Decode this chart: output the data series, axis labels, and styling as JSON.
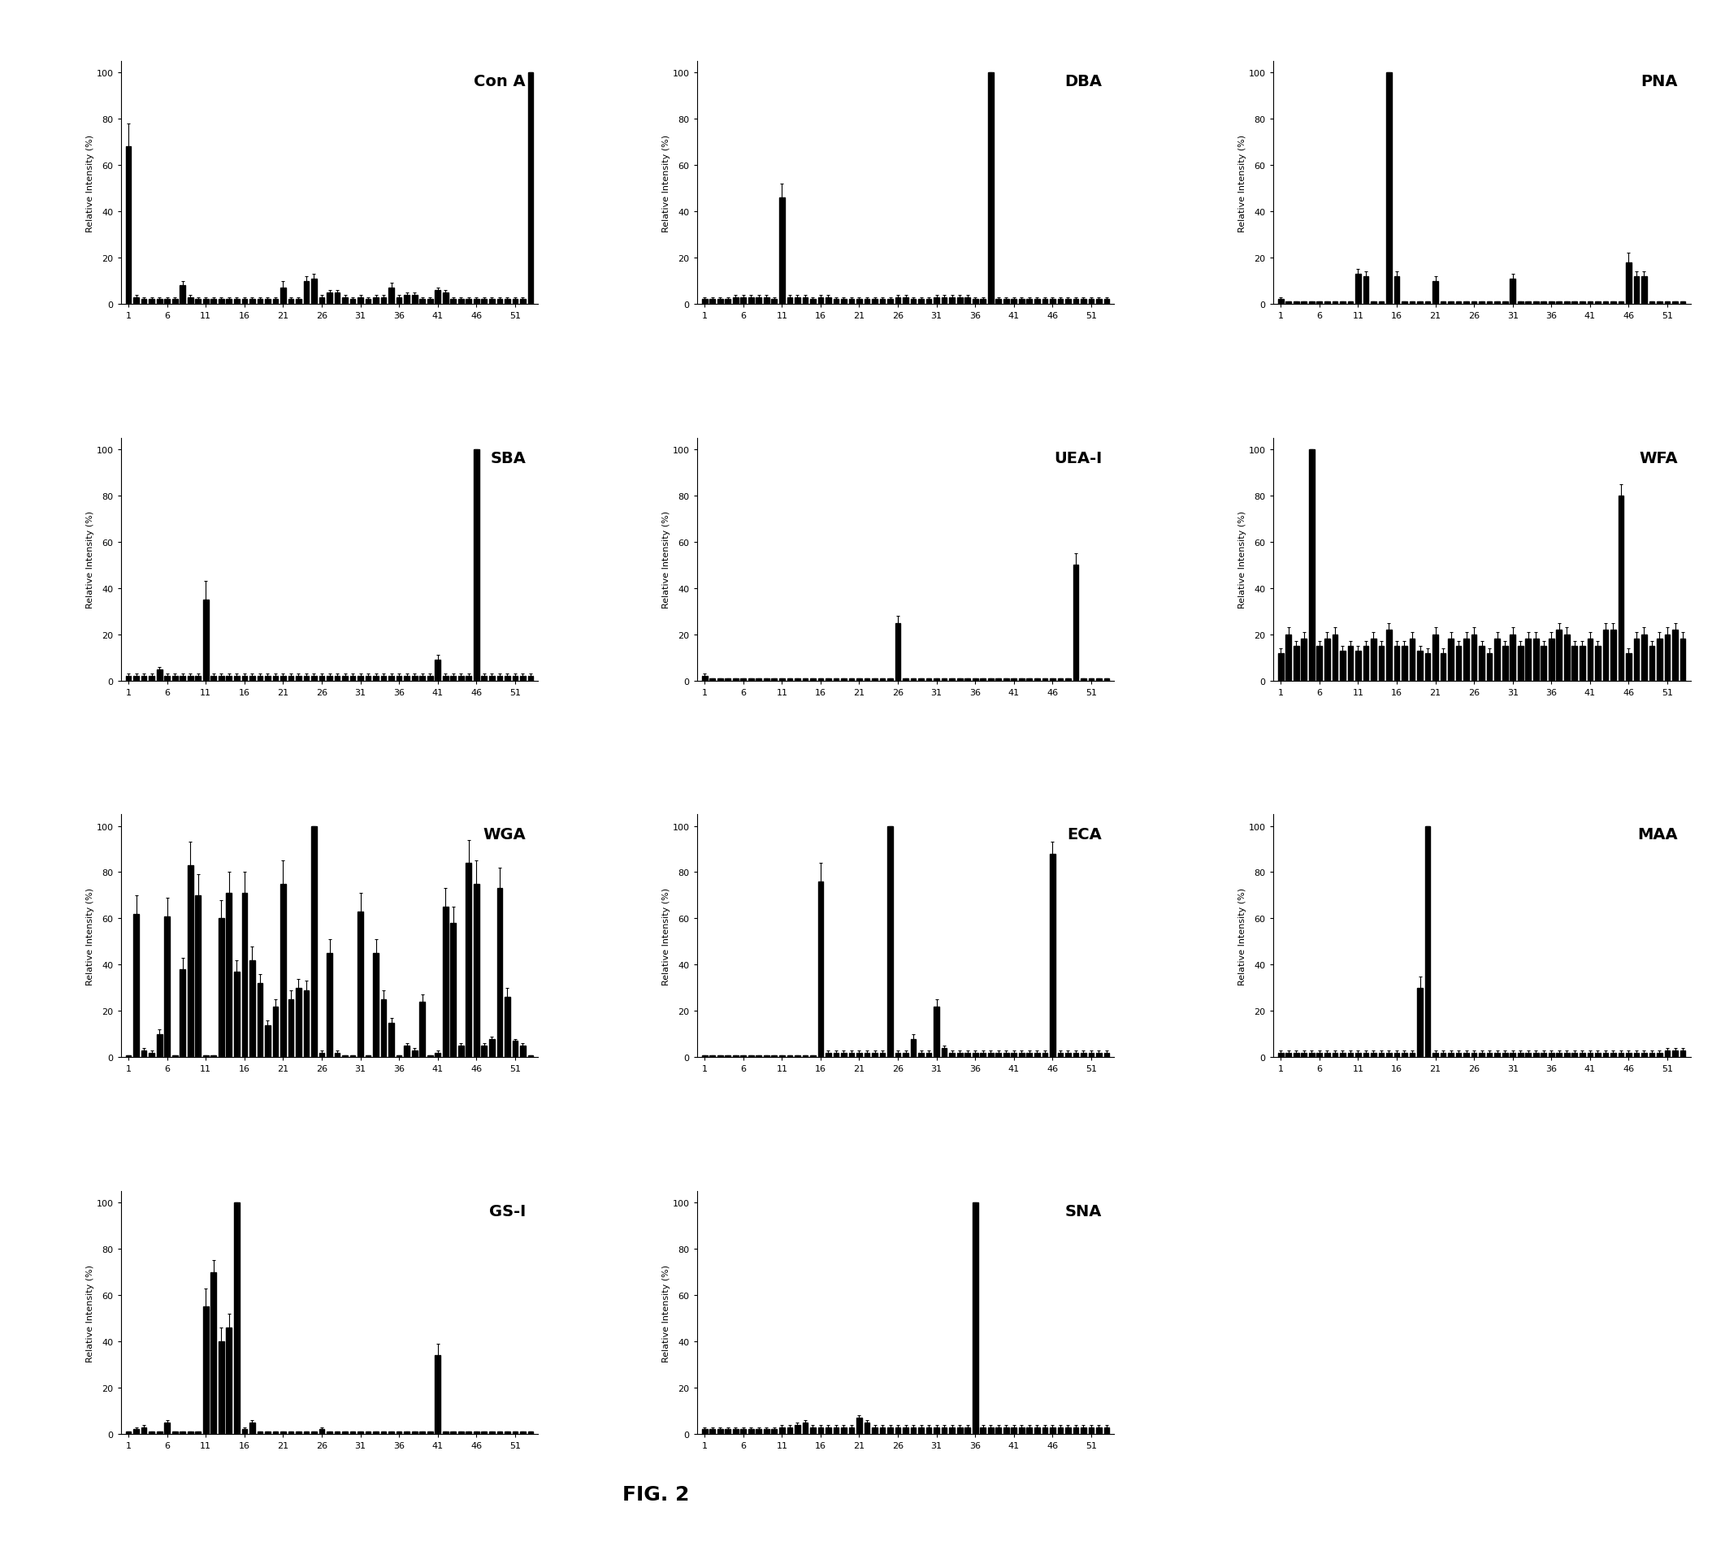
{
  "figure_title": "FIG. 2",
  "ylabel": "Relative Intensity (%)",
  "xlabel_ticks": [
    1,
    6,
    11,
    16,
    21,
    26,
    31,
    36,
    41,
    46,
    51
  ],
  "n_bars": 53,
  "subplots": [
    {
      "title": "Con A",
      "grid_row": 0,
      "grid_col": 0,
      "values": [
        68,
        3,
        2,
        2,
        2,
        2,
        2,
        8,
        3,
        2,
        2,
        2,
        2,
        2,
        2,
        2,
        2,
        2,
        2,
        2,
        7,
        2,
        2,
        10,
        11,
        3,
        5,
        5,
        3,
        2,
        3,
        2,
        3,
        3,
        7,
        3,
        4,
        4,
        2,
        2,
        6,
        5,
        2,
        2,
        2,
        2,
        2,
        2,
        2,
        2,
        2,
        2,
        100
      ],
      "errors": [
        10,
        1,
        1,
        1,
        1,
        1,
        1,
        2,
        1,
        1,
        1,
        1,
        1,
        1,
        1,
        1,
        1,
        1,
        1,
        1,
        3,
        1,
        1,
        2,
        2,
        1,
        1,
        1,
        1,
        1,
        1,
        1,
        1,
        1,
        2,
        1,
        1,
        1,
        1,
        1,
        1,
        1,
        1,
        1,
        1,
        1,
        1,
        1,
        1,
        1,
        1,
        1,
        0
      ]
    },
    {
      "title": "DBA",
      "grid_row": 0,
      "grid_col": 1,
      "values": [
        2,
        2,
        2,
        2,
        3,
        3,
        3,
        3,
        3,
        2,
        46,
        3,
        3,
        3,
        2,
        3,
        3,
        2,
        2,
        2,
        2,
        2,
        2,
        2,
        2,
        3,
        3,
        2,
        2,
        2,
        3,
        3,
        3,
        3,
        3,
        2,
        2,
        100,
        2,
        2,
        2,
        2,
        2,
        2,
        2,
        2,
        2,
        2,
        2,
        2,
        2,
        2,
        2
      ],
      "errors": [
        1,
        1,
        1,
        1,
        1,
        1,
        1,
        1,
        1,
        1,
        6,
        1,
        1,
        1,
        1,
        1,
        1,
        1,
        1,
        1,
        1,
        1,
        1,
        1,
        1,
        1,
        1,
        1,
        1,
        1,
        1,
        1,
        1,
        1,
        1,
        1,
        1,
        0,
        1,
        1,
        1,
        1,
        1,
        1,
        1,
        1,
        1,
        1,
        1,
        1,
        1,
        1,
        1
      ]
    },
    {
      "title": "PNA",
      "grid_row": 0,
      "grid_col": 2,
      "values": [
        2,
        1,
        1,
        1,
        1,
        1,
        1,
        1,
        1,
        1,
        13,
        12,
        1,
        1,
        100,
        12,
        1,
        1,
        1,
        1,
        10,
        1,
        1,
        1,
        1,
        1,
        1,
        1,
        1,
        1,
        11,
        1,
        1,
        1,
        1,
        1,
        1,
        1,
        1,
        1,
        1,
        1,
        1,
        1,
        1,
        18,
        12,
        12,
        1,
        1,
        1,
        1,
        1
      ],
      "errors": [
        1,
        0,
        0,
        0,
        0,
        0,
        0,
        0,
        0,
        0,
        2,
        2,
        0,
        0,
        0,
        2,
        0,
        0,
        0,
        0,
        2,
        0,
        0,
        0,
        0,
        0,
        0,
        0,
        0,
        0,
        2,
        0,
        0,
        0,
        0,
        0,
        0,
        0,
        0,
        0,
        0,
        0,
        0,
        0,
        0,
        4,
        2,
        2,
        0,
        0,
        0,
        0,
        0
      ]
    },
    {
      "title": "SBA",
      "grid_row": 1,
      "grid_col": 0,
      "values": [
        2,
        2,
        2,
        2,
        5,
        2,
        2,
        2,
        2,
        2,
        35,
        2,
        2,
        2,
        2,
        2,
        2,
        2,
        2,
        2,
        2,
        2,
        2,
        2,
        2,
        2,
        2,
        2,
        2,
        2,
        2,
        2,
        2,
        2,
        2,
        2,
        2,
        2,
        2,
        2,
        9,
        2,
        2,
        2,
        2,
        100,
        2,
        2,
        2,
        2,
        2,
        2,
        2
      ],
      "errors": [
        1,
        1,
        1,
        1,
        1,
        1,
        1,
        1,
        1,
        1,
        8,
        1,
        1,
        1,
        1,
        1,
        1,
        1,
        1,
        1,
        1,
        1,
        1,
        1,
        1,
        1,
        1,
        1,
        1,
        1,
        1,
        1,
        1,
        1,
        1,
        1,
        1,
        1,
        1,
        1,
        2,
        1,
        1,
        1,
        1,
        0,
        1,
        1,
        1,
        1,
        1,
        1,
        1
      ]
    },
    {
      "title": "UEA-I",
      "grid_row": 1,
      "grid_col": 1,
      "values": [
        2,
        1,
        1,
        1,
        1,
        1,
        1,
        1,
        1,
        1,
        1,
        1,
        1,
        1,
        1,
        1,
        1,
        1,
        1,
        1,
        1,
        1,
        1,
        1,
        1,
        25,
        1,
        1,
        1,
        1,
        1,
        1,
        1,
        1,
        1,
        1,
        1,
        1,
        1,
        1,
        1,
        1,
        1,
        1,
        1,
        1,
        1,
        1,
        50,
        1,
        1,
        1,
        1
      ],
      "errors": [
        1,
        0,
        0,
        0,
        0,
        0,
        0,
        0,
        0,
        0,
        0,
        0,
        0,
        0,
        0,
        0,
        0,
        0,
        0,
        0,
        0,
        0,
        0,
        0,
        0,
        3,
        0,
        0,
        0,
        0,
        0,
        0,
        0,
        0,
        0,
        0,
        0,
        0,
        0,
        0,
        0,
        0,
        0,
        0,
        0,
        0,
        0,
        0,
        5,
        0,
        0,
        0,
        0
      ]
    },
    {
      "title": "WFA",
      "grid_row": 1,
      "grid_col": 2,
      "values": [
        12,
        20,
        15,
        18,
        100,
        15,
        18,
        20,
        13,
        15,
        13,
        15,
        18,
        15,
        22,
        15,
        15,
        18,
        13,
        12,
        20,
        12,
        18,
        15,
        18,
        20,
        15,
        12,
        18,
        15,
        20,
        15,
        18,
        18,
        15,
        18,
        22,
        20,
        15,
        15,
        18,
        15,
        22,
        22,
        80,
        12,
        18,
        20,
        15,
        18,
        20,
        22,
        18
      ],
      "errors": [
        2,
        3,
        2,
        3,
        0,
        2,
        3,
        3,
        2,
        2,
        2,
        2,
        3,
        2,
        3,
        2,
        2,
        3,
        2,
        2,
        3,
        2,
        3,
        2,
        3,
        3,
        2,
        2,
        3,
        2,
        3,
        2,
        3,
        3,
        2,
        3,
        3,
        3,
        2,
        2,
        3,
        2,
        3,
        3,
        5,
        2,
        3,
        3,
        2,
        3,
        3,
        3,
        3
      ]
    },
    {
      "title": "WGA",
      "grid_row": 2,
      "grid_col": 0,
      "values": [
        1,
        62,
        3,
        2,
        10,
        61,
        1,
        38,
        83,
        70,
        1,
        1,
        60,
        71,
        37,
        71,
        42,
        32,
        14,
        22,
        75,
        25,
        30,
        29,
        100,
        2,
        45,
        2,
        1,
        1,
        63,
        1,
        45,
        25,
        15,
        1,
        5,
        3,
        24,
        1,
        2,
        65,
        58,
        5,
        84,
        75,
        5,
        8,
        73,
        26,
        7,
        5,
        1
      ],
      "errors": [
        0,
        8,
        1,
        1,
        2,
        8,
        0,
        5,
        10,
        9,
        0,
        0,
        8,
        9,
        5,
        9,
        6,
        4,
        2,
        3,
        10,
        4,
        4,
        4,
        0,
        1,
        6,
        1,
        0,
        0,
        8,
        0,
        6,
        4,
        2,
        0,
        1,
        1,
        3,
        0,
        1,
        8,
        7,
        1,
        10,
        10,
        1,
        1,
        9,
        4,
        1,
        1,
        0
      ]
    },
    {
      "title": "ECA",
      "grid_row": 2,
      "grid_col": 1,
      "values": [
        1,
        1,
        1,
        1,
        1,
        1,
        1,
        1,
        1,
        1,
        1,
        1,
        1,
        1,
        1,
        76,
        2,
        2,
        2,
        2,
        2,
        2,
        2,
        2,
        100,
        2,
        2,
        8,
        2,
        2,
        22,
        4,
        2,
        2,
        2,
        2,
        2,
        2,
        2,
        2,
        2,
        2,
        2,
        2,
        2,
        88,
        2,
        2,
        2,
        2,
        2,
        2,
        2
      ],
      "errors": [
        0,
        0,
        0,
        0,
        0,
        0,
        0,
        0,
        0,
        0,
        0,
        0,
        0,
        0,
        0,
        8,
        1,
        1,
        1,
        1,
        1,
        1,
        1,
        1,
        0,
        1,
        1,
        2,
        1,
        1,
        3,
        1,
        1,
        1,
        1,
        1,
        1,
        1,
        1,
        1,
        1,
        1,
        1,
        1,
        1,
        5,
        1,
        1,
        1,
        1,
        1,
        1,
        1
      ]
    },
    {
      "title": "MAA",
      "grid_row": 2,
      "grid_col": 2,
      "values": [
        2,
        2,
        2,
        2,
        2,
        2,
        2,
        2,
        2,
        2,
        2,
        2,
        2,
        2,
        2,
        2,
        2,
        2,
        30,
        100,
        2,
        2,
        2,
        2,
        2,
        2,
        2,
        2,
        2,
        2,
        2,
        2,
        2,
        2,
        2,
        2,
        2,
        2,
        2,
        2,
        2,
        2,
        2,
        2,
        2,
        2,
        2,
        2,
        2,
        2,
        3,
        3,
        3
      ],
      "errors": [
        1,
        1,
        1,
        1,
        1,
        1,
        1,
        1,
        1,
        1,
        1,
        1,
        1,
        1,
        1,
        1,
        1,
        1,
        5,
        0,
        1,
        1,
        1,
        1,
        1,
        1,
        1,
        1,
        1,
        1,
        1,
        1,
        1,
        1,
        1,
        1,
        1,
        1,
        1,
        1,
        1,
        1,
        1,
        1,
        1,
        1,
        1,
        1,
        1,
        1,
        1,
        1,
        1
      ]
    },
    {
      "title": "GS-I",
      "grid_row": 3,
      "grid_col": 0,
      "values": [
        1,
        2,
        3,
        1,
        1,
        5,
        1,
        1,
        1,
        1,
        55,
        70,
        40,
        46,
        100,
        2,
        5,
        1,
        1,
        1,
        1,
        1,
        1,
        1,
        1,
        2,
        1,
        1,
        1,
        1,
        1,
        1,
        1,
        1,
        1,
        1,
        1,
        1,
        1,
        1,
        34,
        1,
        1,
        1,
        1,
        1,
        1,
        1,
        1,
        1,
        1,
        1,
        1
      ],
      "errors": [
        0,
        1,
        1,
        0,
        0,
        1,
        0,
        0,
        0,
        0,
        8,
        5,
        6,
        6,
        0,
        1,
        1,
        0,
        0,
        0,
        0,
        0,
        0,
        0,
        0,
        1,
        0,
        0,
        0,
        0,
        0,
        0,
        0,
        0,
        0,
        0,
        0,
        0,
        0,
        0,
        5,
        0,
        0,
        0,
        0,
        0,
        0,
        0,
        0,
        0,
        0,
        0,
        0
      ]
    },
    {
      "title": "SNA",
      "grid_row": 3,
      "grid_col": 1,
      "values": [
        2,
        2,
        2,
        2,
        2,
        2,
        2,
        2,
        2,
        2,
        3,
        3,
        4,
        5,
        3,
        3,
        3,
        3,
        3,
        3,
        7,
        5,
        3,
        3,
        3,
        3,
        3,
        3,
        3,
        3,
        3,
        3,
        3,
        3,
        3,
        100,
        3,
        3,
        3,
        3,
        3,
        3,
        3,
        3,
        3,
        3,
        3,
        3,
        3,
        3,
        3,
        3,
        3
      ],
      "errors": [
        1,
        1,
        1,
        1,
        1,
        1,
        1,
        1,
        1,
        1,
        1,
        1,
        1,
        1,
        1,
        1,
        1,
        1,
        1,
        1,
        1,
        1,
        1,
        1,
        1,
        1,
        1,
        1,
        1,
        1,
        1,
        1,
        1,
        1,
        1,
        0,
        1,
        1,
        1,
        1,
        1,
        1,
        1,
        1,
        1,
        1,
        1,
        1,
        1,
        1,
        1,
        1,
        1
      ]
    }
  ],
  "bar_color": "#000000",
  "background_color": "#ffffff",
  "fig_caption": "FIG. 2"
}
